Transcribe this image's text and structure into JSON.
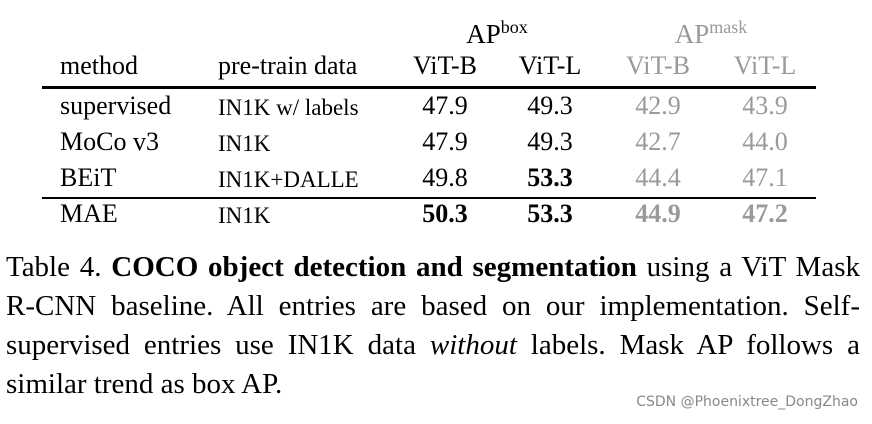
{
  "table": {
    "group_headers": [
      {
        "label": "AP",
        "sup": "box"
      },
      {
        "label": "AP",
        "sup": "mask"
      }
    ],
    "columns": [
      "method",
      "pre-train data",
      "ViT-B",
      "ViT-L",
      "ViT-B",
      "ViT-L"
    ],
    "rows": [
      {
        "cells": [
          "supervised",
          "IN1K w/ labels",
          "47.9",
          "49.3",
          "42.9",
          "43.9"
        ],
        "bold": []
      },
      {
        "cells": [
          "MoCo v3",
          "IN1K",
          "47.9",
          "49.3",
          "42.7",
          "44.0"
        ],
        "bold": []
      },
      {
        "cells": [
          "BEiT",
          "IN1K+DALLE",
          "49.8",
          "53.3",
          "44.4",
          "47.1"
        ],
        "bold": [
          3
        ]
      },
      {
        "cells": [
          "MAE",
          "IN1K",
          "50.3",
          "53.3",
          "44.9",
          "47.2"
        ],
        "bold": [
          2,
          3,
          4,
          5
        ]
      }
    ]
  },
  "caption": [
    {
      "text": "Table 4. "
    },
    {
      "text": "COCO object detection and segmentation",
      "bold": true
    },
    {
      "text": " using a ViT Mask R-CNN baseline. All entries are based on our implementation. Self-supervised entries use IN1K data "
    },
    {
      "text": "without",
      "italic": true
    },
    {
      "text": " labels. Mask AP follows a similar trend as box AP."
    }
  ],
  "watermark": "CSDN @Phoenixtree_DongZhao"
}
